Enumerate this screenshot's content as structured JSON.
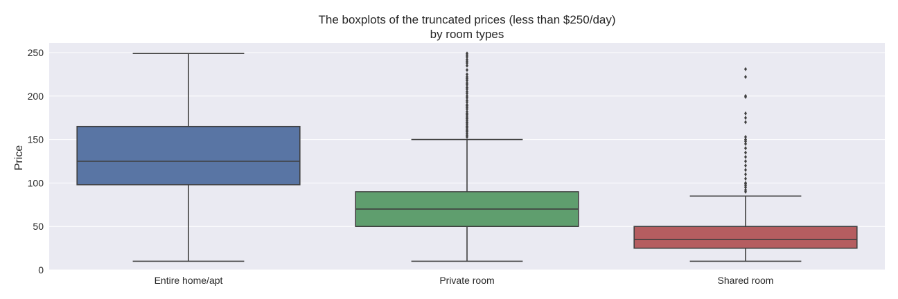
{
  "chart_data": {
    "type": "boxplot",
    "title": "The boxplots of the truncated prices (less than $250/day)",
    "subtitle": "by room types",
    "xlabel": "",
    "ylabel": "Price",
    "ylim": [
      0,
      250
    ],
    "yticks": [
      "0",
      "50",
      "100",
      "150",
      "200",
      "250"
    ],
    "grid": true,
    "categories": [
      "Entire home/apt",
      "Private room",
      "Shared room"
    ],
    "boxes": [
      {
        "category": "Entire home/apt",
        "color": "#5975a4",
        "whisker_low": 10,
        "q1": 98,
        "median": 125,
        "q3": 165,
        "whisker_high": 249,
        "outliers": []
      },
      {
        "category": "Private room",
        "color": "#5f9e6e",
        "whisker_low": 10,
        "q1": 50,
        "median": 70,
        "q3": 90,
        "whisker_high": 150,
        "outliers": [
          153,
          155,
          157,
          159,
          160,
          162,
          164,
          165,
          167,
          169,
          170,
          172,
          174,
          175,
          177,
          179,
          180,
          182,
          185,
          187,
          189,
          190,
          193,
          195,
          198,
          200,
          203,
          205,
          208,
          210,
          213,
          215,
          218,
          220,
          222,
          225,
          230,
          235,
          238,
          240,
          242,
          245,
          247,
          249
        ]
      },
      {
        "category": "Shared room",
        "color": "#b55d60",
        "whisker_low": 10,
        "q1": 25,
        "median": 35,
        "q3": 50,
        "whisker_high": 85,
        "outliers": [
          90,
          92,
          95,
          97,
          99,
          100,
          105,
          110,
          115,
          120,
          125,
          130,
          135,
          140,
          145,
          148,
          150,
          153,
          170,
          175,
          180,
          199,
          200,
          222,
          231
        ]
      }
    ]
  }
}
